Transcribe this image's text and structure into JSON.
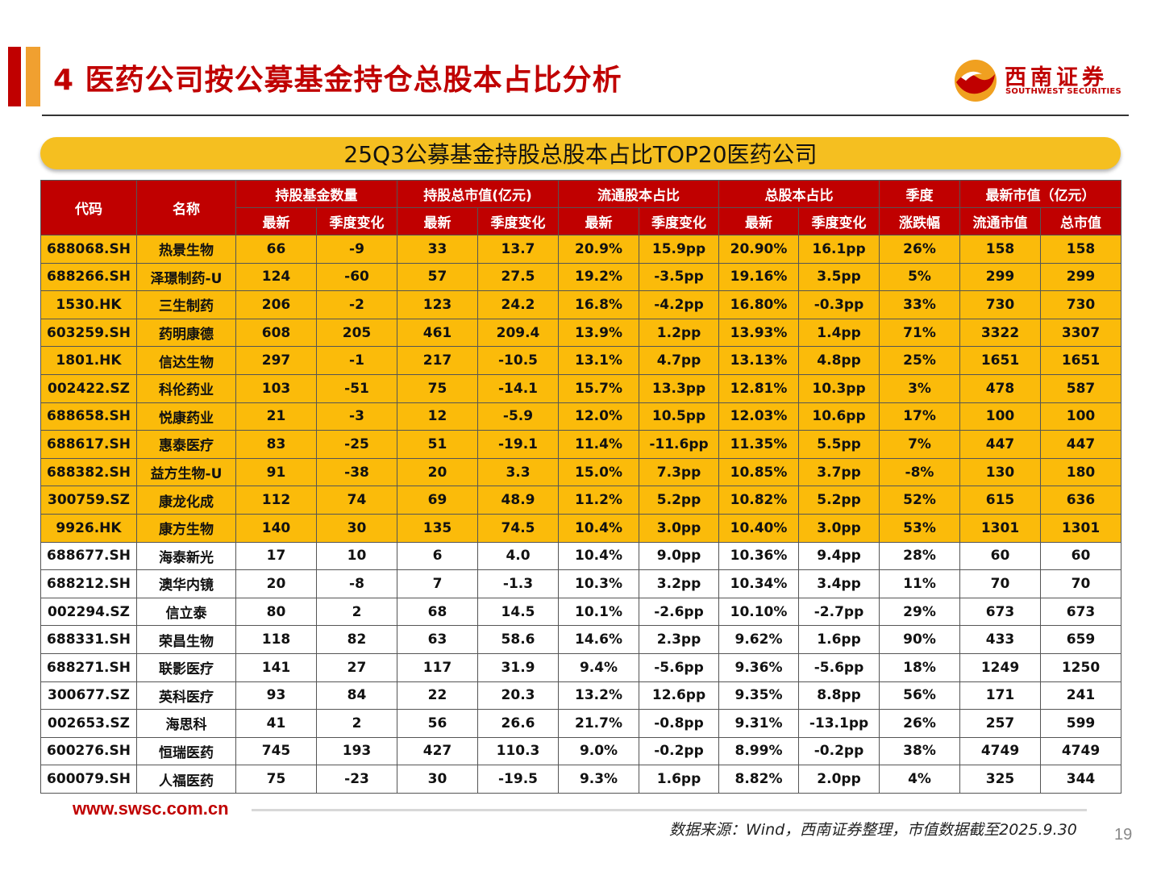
{
  "title": "4 医药公司按公募基金持仓总股本占比分析",
  "logo": {
    "name_cn": "西南证券",
    "name_en": "SOUTHWEST SECURITIES"
  },
  "subtitle": "25Q3公募基金持股总股本占比TOP20医药公司",
  "table": {
    "header_groups": {
      "code": "代码",
      "name": "名称",
      "fund_count": "持股基金数量",
      "holding_value": "持股总市值(亿元)",
      "float_ratio": "流通股本占比",
      "total_ratio": "总股本占比",
      "quarter": "季度",
      "market_cap": "最新市值（亿元）"
    },
    "sub_headers": [
      "最新",
      "季度变化",
      "最新",
      "季度变化",
      "最新",
      "季度变化",
      "最新",
      "季度变化",
      "涨跌幅",
      "流通市值",
      "总市值"
    ],
    "rows": [
      [
        "688068.SH",
        "热景生物",
        "66",
        "-9",
        "33",
        "13.7",
        "20.9%",
        "15.9pp",
        "20.90%",
        "16.1pp",
        "26%",
        "158",
        "158"
      ],
      [
        "688266.SH",
        "泽璟制药-U",
        "124",
        "-60",
        "57",
        "27.5",
        "19.2%",
        "-3.5pp",
        "19.16%",
        "3.5pp",
        "5%",
        "299",
        "299"
      ],
      [
        "1530.HK",
        "三生制药",
        "206",
        "-2",
        "123",
        "24.2",
        "16.8%",
        "-4.2pp",
        "16.80%",
        "-0.3pp",
        "33%",
        "730",
        "730"
      ],
      [
        "603259.SH",
        "药明康德",
        "608",
        "205",
        "461",
        "209.4",
        "13.9%",
        "1.2pp",
        "13.93%",
        "1.4pp",
        "71%",
        "3322",
        "3307"
      ],
      [
        "1801.HK",
        "信达生物",
        "297",
        "-1",
        "217",
        "-10.5",
        "13.1%",
        "4.7pp",
        "13.13%",
        "4.8pp",
        "25%",
        "1651",
        "1651"
      ],
      [
        "002422.SZ",
        "科伦药业",
        "103",
        "-51",
        "75",
        "-14.1",
        "15.7%",
        "13.3pp",
        "12.81%",
        "10.3pp",
        "3%",
        "478",
        "587"
      ],
      [
        "688658.SH",
        "悦康药业",
        "21",
        "-3",
        "12",
        "-5.9",
        "12.0%",
        "10.5pp",
        "12.03%",
        "10.6pp",
        "17%",
        "100",
        "100"
      ],
      [
        "688617.SH",
        "惠泰医疗",
        "83",
        "-25",
        "51",
        "-19.1",
        "11.4%",
        "-11.6pp",
        "11.35%",
        "5.5pp",
        "7%",
        "447",
        "447"
      ],
      [
        "688382.SH",
        "益方生物-U",
        "91",
        "-38",
        "20",
        "3.3",
        "15.0%",
        "7.3pp",
        "10.85%",
        "3.7pp",
        "-8%",
        "130",
        "180"
      ],
      [
        "300759.SZ",
        "康龙化成",
        "112",
        "74",
        "69",
        "48.9",
        "11.2%",
        "5.2pp",
        "10.82%",
        "5.2pp",
        "52%",
        "615",
        "636"
      ],
      [
        "9926.HK",
        "康方生物",
        "140",
        "30",
        "135",
        "74.5",
        "10.4%",
        "3.0pp",
        "10.40%",
        "3.0pp",
        "53%",
        "1301",
        "1301"
      ],
      [
        "688677.SH",
        "海泰新光",
        "17",
        "10",
        "6",
        "4.0",
        "10.4%",
        "9.0pp",
        "10.36%",
        "9.4pp",
        "28%",
        "60",
        "60"
      ],
      [
        "688212.SH",
        "澳华内镜",
        "20",
        "-8",
        "7",
        "-1.3",
        "10.3%",
        "3.2pp",
        "10.34%",
        "3.4pp",
        "11%",
        "70",
        "70"
      ],
      [
        "002294.SZ",
        "信立泰",
        "80",
        "2",
        "68",
        "14.5",
        "10.1%",
        "-2.6pp",
        "10.10%",
        "-2.7pp",
        "29%",
        "673",
        "673"
      ],
      [
        "688331.SH",
        "荣昌生物",
        "118",
        "82",
        "63",
        "58.6",
        "14.6%",
        "2.3pp",
        "9.62%",
        "1.6pp",
        "90%",
        "433",
        "659"
      ],
      [
        "688271.SH",
        "联影医疗",
        "141",
        "27",
        "117",
        "31.9",
        "9.4%",
        "-5.6pp",
        "9.36%",
        "-5.6pp",
        "18%",
        "1249",
        "1250"
      ],
      [
        "300677.SZ",
        "英科医疗",
        "93",
        "84",
        "22",
        "20.3",
        "13.2%",
        "12.6pp",
        "9.35%",
        "8.8pp",
        "56%",
        "171",
        "241"
      ],
      [
        "002653.SZ",
        "海思科",
        "41",
        "2",
        "56",
        "26.6",
        "21.7%",
        "-0.8pp",
        "9.31%",
        "-13.1pp",
        "26%",
        "257",
        "599"
      ],
      [
        "600276.SH",
        "恒瑞医药",
        "745",
        "193",
        "427",
        "110.3",
        "9.0%",
        "-0.2pp",
        "8.99%",
        "-0.2pp",
        "38%",
        "4749",
        "4749"
      ],
      [
        "600079.SH",
        "人福医药",
        "75",
        "-23",
        "30",
        "-19.5",
        "9.3%",
        "1.6pp",
        "8.82%",
        "2.0pp",
        "4%",
        "325",
        "344"
      ]
    ],
    "highlighted_row_count": 11,
    "highlight_color": "#fbbb0a",
    "header_color": "#c00000"
  },
  "footer": {
    "url": "www.swsc.com.cn",
    "source": "数据来源：Wind，西南证券整理，市值数据截至2025.9.30",
    "page_number": "19"
  }
}
